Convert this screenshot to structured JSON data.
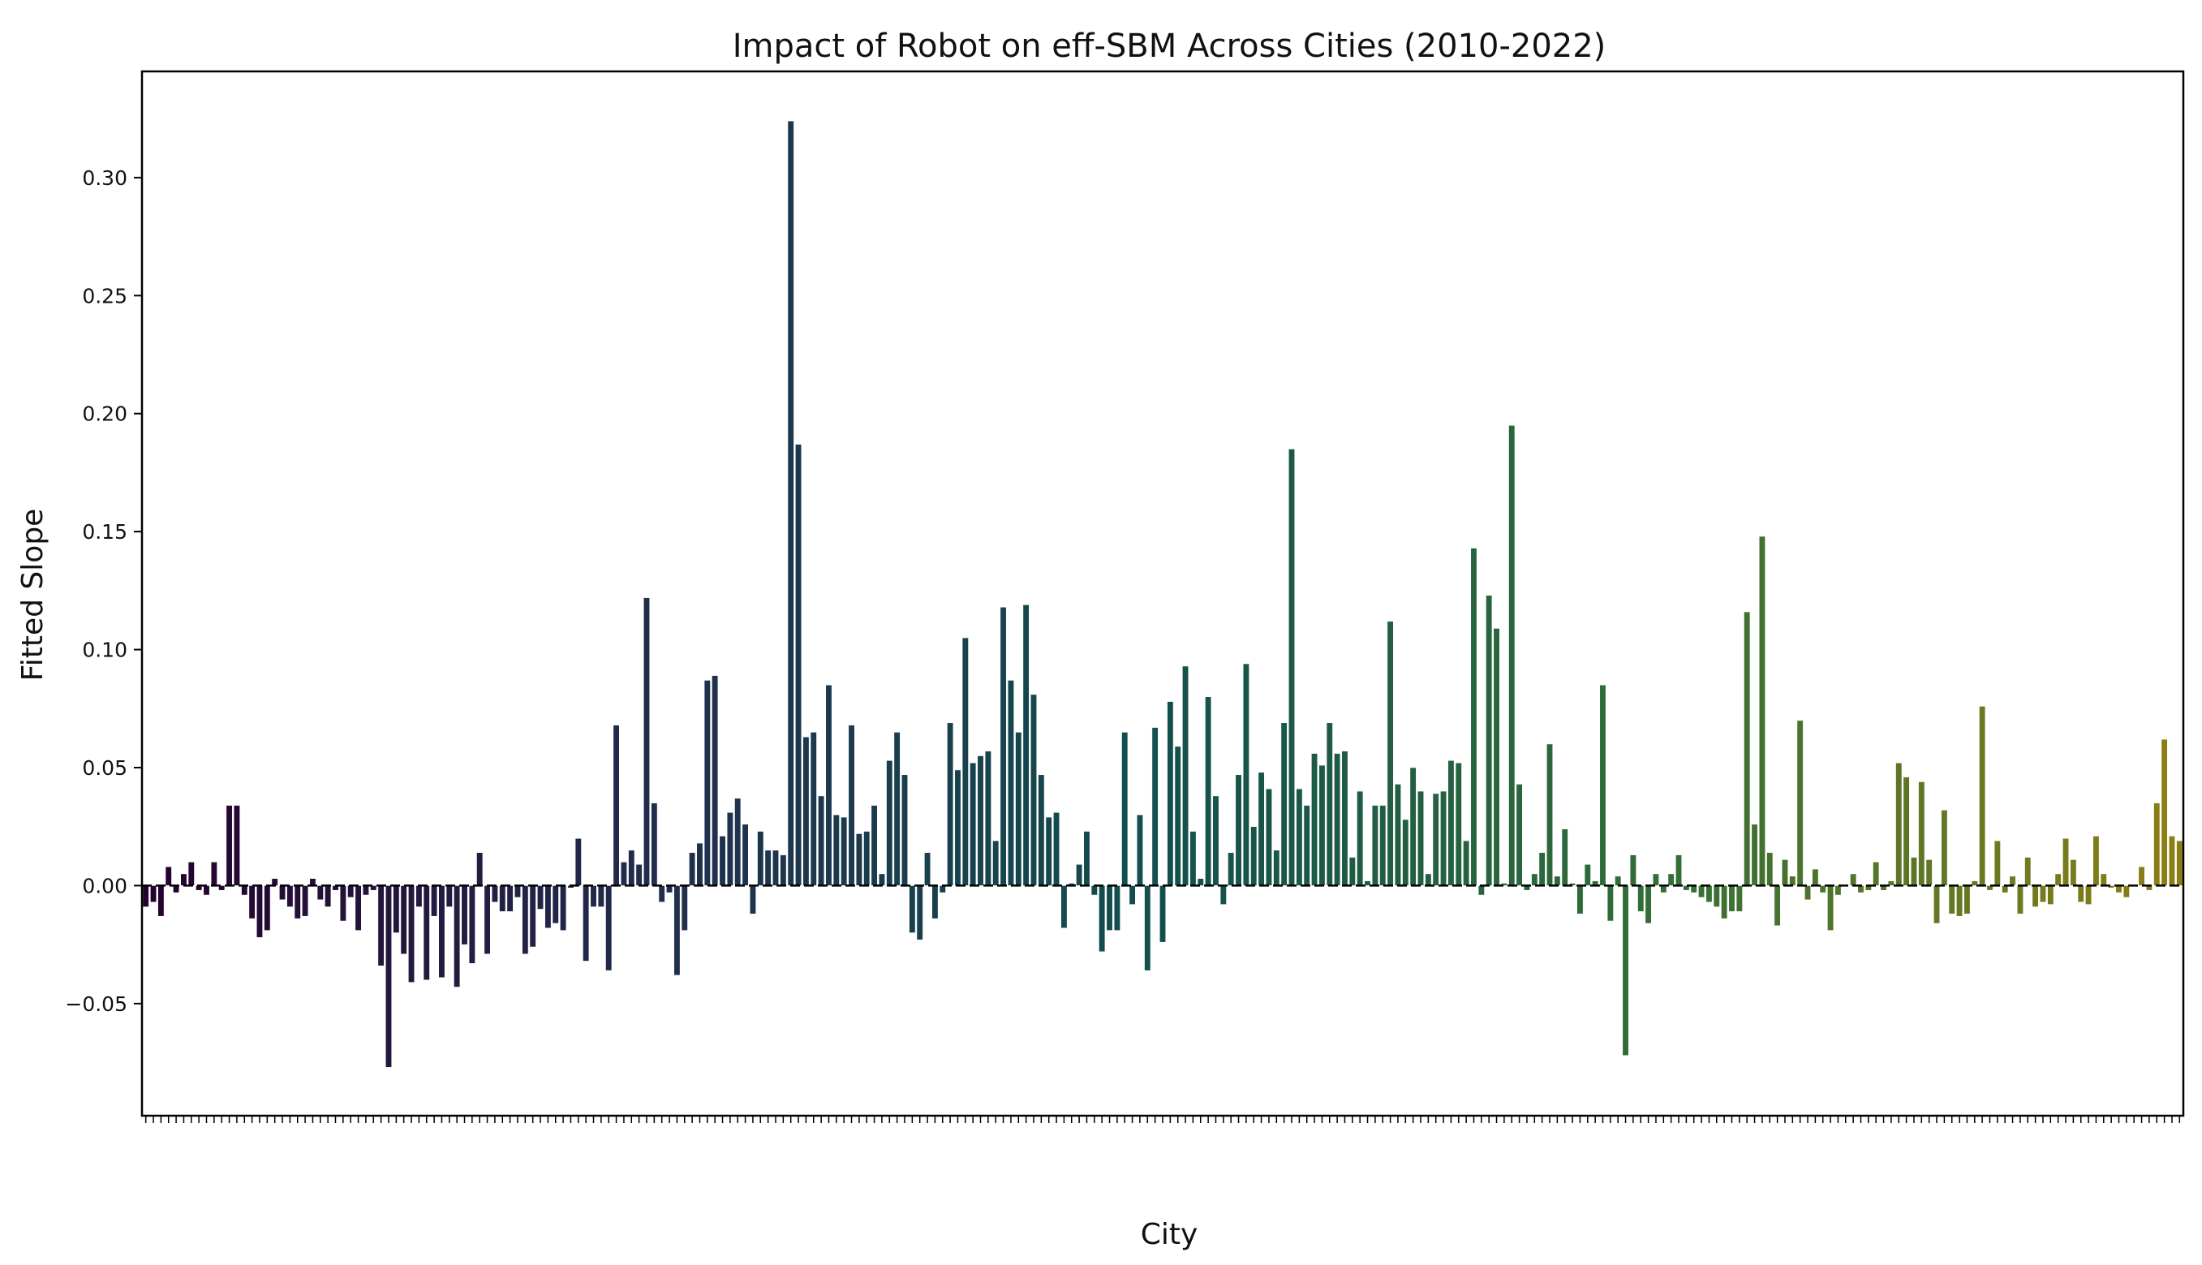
{
  "chart_data": {
    "type": "bar",
    "title": "Impact of Robot on eff-SBM Across Cities (2010-2022)",
    "xlabel": "City",
    "ylabel": "Fitted Slope",
    "ylim": [
      -0.0975,
      0.345
    ],
    "yticks": [
      -0.05,
      0.0,
      0.05,
      0.1,
      0.15,
      0.2,
      0.25,
      0.3
    ],
    "ytick_labels": [
      "−0.05",
      "0.00",
      "0.05",
      "0.10",
      "0.15",
      "0.20",
      "0.25",
      "0.30"
    ],
    "x_tick_labels_shown": false,
    "grid": false,
    "legend": "none",
    "zero_line": "dashed black",
    "colormap": "viridis",
    "colormap_stops": [
      "#440154",
      "#3b528b",
      "#21918c",
      "#5ec962",
      "#fde725"
    ],
    "bar_darkening": 0.55,
    "values": [
      -0.009,
      -0.007,
      -0.013,
      0.008,
      -0.003,
      0.005,
      0.01,
      -0.002,
      -0.004,
      0.01,
      -0.002,
      0.034,
      0.034,
      -0.004,
      -0.014,
      -0.022,
      -0.019,
      0.003,
      -0.006,
      -0.009,
      -0.014,
      -0.013,
      0.003,
      -0.006,
      -0.009,
      -0.002,
      -0.015,
      -0.005,
      -0.019,
      -0.004,
      -0.002,
      -0.034,
      -0.077,
      -0.02,
      -0.029,
      -0.041,
      -0.009,
      -0.04,
      -0.013,
      -0.039,
      -0.009,
      -0.043,
      -0.025,
      -0.033,
      0.014,
      -0.029,
      -0.007,
      -0.011,
      -0.011,
      -0.005,
      -0.029,
      -0.026,
      -0.01,
      -0.018,
      -0.016,
      -0.019,
      -0.001,
      0.02,
      -0.032,
      -0.009,
      -0.009,
      -0.036,
      0.068,
      0.01,
      0.015,
      0.009,
      0.122,
      0.035,
      -0.007,
      -0.003,
      -0.038,
      -0.019,
      0.014,
      0.018,
      0.087,
      0.089,
      0.021,
      0.031,
      0.037,
      0.026,
      -0.012,
      0.023,
      0.015,
      0.015,
      0.013,
      0.324,
      0.187,
      0.063,
      0.065,
      0.038,
      0.085,
      0.03,
      0.029,
      0.068,
      0.022,
      0.023,
      0.034,
      0.005,
      0.053,
      0.065,
      0.047,
      -0.02,
      -0.023,
      0.014,
      -0.014,
      -0.003,
      0.069,
      0.049,
      0.105,
      0.052,
      0.055,
      0.057,
      0.019,
      0.118,
      0.087,
      0.065,
      0.119,
      0.081,
      0.047,
      0.029,
      0.031,
      -0.018,
      0.001,
      0.009,
      0.023,
      -0.004,
      -0.028,
      -0.019,
      -0.019,
      0.065,
      -0.008,
      0.03,
      -0.036,
      0.067,
      -0.024,
      0.078,
      0.059,
      0.093,
      0.023,
      0.003,
      0.08,
      0.038,
      -0.008,
      0.014,
      0.047,
      0.094,
      0.025,
      0.048,
      0.041,
      0.015,
      0.069,
      0.185,
      0.041,
      0.034,
      0.056,
      0.051,
      0.069,
      0.056,
      0.057,
      0.012,
      0.04,
      0.002,
      0.034,
      0.034,
      0.112,
      0.043,
      0.028,
      0.05,
      0.04,
      0.005,
      0.039,
      0.04,
      0.053,
      0.052,
      0.019,
      0.143,
      -0.004,
      0.123,
      0.109,
      0.001,
      0.195,
      0.043,
      -0.002,
      0.005,
      0.014,
      0.06,
      0.004,
      0.024,
      0.001,
      -0.012,
      0.009,
      0.002,
      0.085,
      -0.015,
      0.004,
      -0.072,
      0.013,
      -0.011,
      -0.016,
      0.005,
      -0.003,
      0.005,
      0.013,
      -0.002,
      -0.003,
      -0.005,
      -0.007,
      -0.009,
      -0.014,
      -0.011,
      -0.011,
      0.116,
      0.026,
      0.148,
      0.014,
      -0.017,
      0.011,
      0.004,
      0.07,
      -0.006,
      0.007,
      -0.003,
      -0.019,
      -0.004,
      0.0,
      0.005,
      -0.003,
      -0.002,
      0.01,
      -0.002,
      0.002,
      0.052,
      0.046,
      0.012,
      0.044,
      0.011,
      -0.016,
      0.032,
      -0.012,
      -0.013,
      -0.012,
      0.002,
      0.076,
      -0.002,
      0.019,
      -0.003,
      0.004,
      -0.012,
      0.012,
      -0.009,
      -0.007,
      -0.008,
      0.005,
      0.02,
      0.011,
      -0.007,
      -0.008,
      0.021,
      0.005,
      -0.001,
      -0.003,
      -0.005,
      0.0,
      0.008,
      -0.002,
      0.035,
      0.062,
      0.021,
      0.019
    ]
  }
}
